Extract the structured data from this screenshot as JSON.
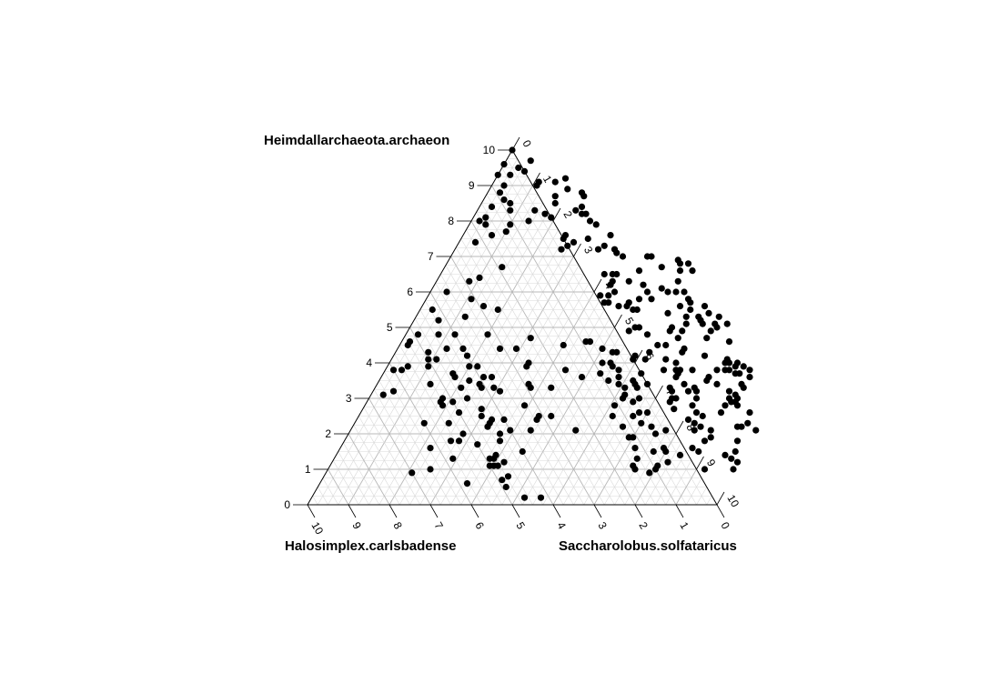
{
  "chart_data": {
    "type": "scatter",
    "subtype": "ternary",
    "corner_labels": {
      "top": "Heimdallarchaeota.archaeon",
      "left": "Halosimplex.carlsbadense",
      "right": "Saccharolobus.solfataricus"
    },
    "axis_range": [
      0,
      10
    ],
    "grid": true,
    "point_color": "#000000",
    "grid_color": "#d9d9d9",
    "axis_color": "#000000",
    "points": [
      [
        0.4,
        9.5
      ],
      [
        0.3,
        8.4
      ],
      [
        0.3,
        8.1
      ],
      [
        0.7,
        7.6
      ],
      [
        0.4,
        7.4
      ],
      [
        1.4,
        6.7
      ],
      [
        1.0,
        6.4
      ],
      [
        0.8,
        6.3
      ],
      [
        0.4,
        6.0
      ],
      [
        1.1,
        5.8
      ],
      [
        1.5,
        5.6
      ],
      [
        0.3,
        5.5
      ],
      [
        1.9,
        5.5
      ],
      [
        1.2,
        5.3
      ],
      [
        0.6,
        5.2
      ],
      [
        1.2,
        4.8
      ],
      [
        2.0,
        4.8
      ],
      [
        0.3,
        4.8
      ],
      [
        0.8,
        4.8
      ],
      [
        0.2,
        4.6
      ],
      [
        0.2,
        4.5
      ],
      [
        1.2,
        4.4
      ],
      [
        0.8,
        4.3
      ],
      [
        1.8,
        4.2
      ],
      [
        1.1,
        4.1
      ],
      [
        0.9,
        4.1
      ],
      [
        2.0,
        3.9
      ],
      [
        1.0,
        3.9
      ],
      [
        0.5,
        3.9
      ],
      [
        0.4,
        3.8
      ],
      [
        0.2,
        3.8
      ],
      [
        1.7,
        3.7
      ],
      [
        2.5,
        3.6
      ],
      [
        2.7,
        3.6
      ],
      [
        2.5,
        3.4
      ],
      [
        2.2,
        3.5
      ],
      [
        1.3,
        3.4
      ],
      [
        2.1,
        3.3
      ],
      [
        3.1,
        3.2
      ],
      [
        0.3,
        3.1
      ],
      [
        0.5,
        3.2
      ],
      [
        1.8,
        3.0
      ],
      [
        2.1,
        2.9
      ],
      [
        1.8,
        2.9
      ],
      [
        3.9,
        2.8
      ],
      [
        1.9,
        2.8
      ],
      [
        2.9,
        2.7
      ],
      [
        2.4,
        2.6
      ],
      [
        3.3,
        2.4
      ],
      [
        3.0,
        2.5
      ],
      [
        3.3,
        2.2
      ],
      [
        2.3,
        2.3
      ],
      [
        3.3,
        2.3
      ],
      [
        1.7,
        2.3
      ],
      [
        3.9,
        2.1
      ],
      [
        3.7,
        2.0
      ],
      [
        3.3,
        1.7
      ],
      [
        2.6,
        1.8
      ],
      [
        2.8,
        1.8
      ],
      [
        2.2,
        1.6
      ],
      [
        2.9,
        1.3
      ],
      [
        3.8,
        1.3
      ],
      [
        3.9,
        1.4
      ],
      [
        3.9,
        1.3
      ],
      [
        4.2,
        1.2
      ],
      [
        4.1,
        1.1
      ],
      [
        3.9,
        1.1
      ],
      [
        4.0,
        1.1
      ],
      [
        2.5,
        1.0
      ],
      [
        4.4,
        0.7
      ],
      [
        4.6,
        0.5
      ],
      [
        5.6,
        0.2
      ],
      [
        5.2,
        0.2
      ],
      [
        3.6,
        0.6
      ],
      [
        4.5,
        0.8
      ],
      [
        2.1,
        0.9
      ],
      [
        4.5,
        1.5
      ],
      [
        3.8,
        1.8
      ],
      [
        2.8,
        2.0
      ],
      [
        3.6,
        2.4
      ],
      [
        4.4,
        2.5
      ],
      [
        4.7,
        2.5
      ],
      [
        5.5,
        2.1
      ],
      [
        4.4,
        2.1
      ],
      [
        4.4,
        2.4
      ],
      [
        4.3,
        3.3
      ],
      [
        3.8,
        3.3
      ],
      [
        2.4,
        3.0
      ],
      [
        2.6,
        3.3
      ],
      [
        3.7,
        3.4
      ],
      [
        2.9,
        3.3
      ],
      [
        1.8,
        3.6
      ],
      [
        2.2,
        3.9
      ],
      [
        3.4,
        3.9
      ],
      [
        2.5,
        4.4
      ],
      [
        1.6,
        4.4
      ],
      [
        2.9,
        4.4
      ],
      [
        3.4,
        4.0
      ],
      [
        4.9,
        3.6
      ],
      [
        5.3,
        3.7
      ],
      [
        4.4,
        3.8
      ],
      [
        3.1,
        4.7
      ],
      [
        4.0,
        4.5
      ],
      [
        5.0,
        4.4
      ],
      [
        5.4,
        4.3
      ],
      [
        4.5,
        4.6
      ],
      [
        4.6,
        4.6
      ],
      [
        5.3,
        4.3
      ],
      [
        5.9,
        4.1
      ],
      [
        5.2,
        4.0
      ],
      [
        6.3,
        3.7
      ],
      [
        6.2,
        3.5
      ],
      [
        6.3,
        3.4
      ],
      [
        6.6,
        3.4
      ],
      [
        6.2,
        4.1
      ],
      [
        6.2,
        4.3
      ],
      [
        6.3,
        4.5
      ],
      [
        5.9,
        4.8
      ],
      [
        5.4,
        4.9
      ],
      [
        5.6,
        5.0
      ],
      [
        5.5,
        5.0
      ],
      [
        6.4,
        5.0
      ],
      [
        6.7,
        5.1
      ],
      [
        6.6,
        5.3
      ],
      [
        7.1,
        5.1
      ],
      [
        6.1,
        5.4
      ],
      [
        5.3,
        5.5
      ],
      [
        5.0,
        5.6
      ],
      [
        4.8,
        5.6
      ],
      [
        5.0,
        5.7
      ],
      [
        5.2,
        5.8
      ],
      [
        4.4,
        5.7
      ],
      [
        4.5,
        5.7
      ],
      [
        5.2,
        5.5
      ],
      [
        5.8,
        6.0
      ],
      [
        6.3,
        5.6
      ],
      [
        7.4,
        5.3
      ],
      [
        7.7,
        5.1
      ],
      [
        7.4,
        5.1
      ],
      [
        7.5,
        5.0
      ],
      [
        7.4,
        4.9
      ],
      [
        7.4,
        4.7
      ],
      [
        8.0,
        4.6
      ],
      [
        8.2,
        4.0
      ],
      [
        7.0,
        4.3
      ],
      [
        7.6,
        4.2
      ],
      [
        7.5,
        3.8
      ],
      [
        7.2,
        3.8
      ],
      [
        7.1,
        3.8
      ],
      [
        7.2,
        3.7
      ],
      [
        7.2,
        3.6
      ],
      [
        7.5,
        3.4
      ],
      [
        7.7,
        3.2
      ],
      [
        8.3,
        3.4
      ],
      [
        8.0,
        3.5
      ],
      [
        8.0,
        3.6
      ],
      [
        8.1,
        3.8
      ],
      [
        8.3,
        4.0
      ],
      [
        8.2,
        4.1
      ],
      [
        8.4,
        3.8
      ],
      [
        8.3,
        3.8
      ],
      [
        8.5,
        3.9
      ],
      [
        8.5,
        4.0
      ],
      [
        8.7,
        3.9
      ],
      [
        8.6,
        3.7
      ],
      [
        8.7,
        3.7
      ],
      [
        8.9,
        3.8
      ],
      [
        9.0,
        3.6
      ],
      [
        8.9,
        3.4
      ],
      [
        9.0,
        3.3
      ],
      [
        8.7,
        3.2
      ],
      [
        8.9,
        3.1
      ],
      [
        8.8,
        3.0
      ],
      [
        9.0,
        3.0
      ],
      [
        8.9,
        2.9
      ],
      [
        9.0,
        2.9
      ],
      [
        8.8,
        2.6
      ],
      [
        8.8,
        2.8
      ],
      [
        9.1,
        2.8
      ],
      [
        9.5,
        2.6
      ],
      [
        9.6,
        2.3
      ],
      [
        9.4,
        2.2
      ],
      [
        9.5,
        2.2
      ],
      [
        9.9,
        2.1
      ],
      [
        9.6,
        1.8
      ],
      [
        9.7,
        1.5
      ],
      [
        9.5,
        1.4
      ],
      [
        9.7,
        1.3
      ],
      [
        9.9,
        1.2
      ],
      [
        9.9,
        1.0
      ],
      [
        9.2,
        1.0
      ],
      [
        8.8,
        1.5
      ],
      [
        8.6,
        1.6
      ],
      [
        8.8,
        1.8
      ],
      [
        8.9,
        1.9
      ],
      [
        8.4,
        2.1
      ],
      [
        8.8,
        2.1
      ],
      [
        8.5,
        2.2
      ],
      [
        8.3,
        2.3
      ],
      [
        8.1,
        2.4
      ],
      [
        8.4,
        2.5
      ],
      [
        8.2,
        2.6
      ],
      [
        8.0,
        2.8
      ],
      [
        8.0,
        3.0
      ],
      [
        7.9,
        3.2
      ],
      [
        7.8,
        3.3
      ],
      [
        7.5,
        3.0
      ],
      [
        7.4,
        3.0
      ],
      [
        7.3,
        3.2
      ],
      [
        7.2,
        3.3
      ],
      [
        7.4,
        2.9
      ],
      [
        7.6,
        2.7
      ],
      [
        7.3,
        2.2
      ],
      [
        7.5,
        2.0
      ],
      [
        7.7,
        2.1
      ],
      [
        7.0,
        1.9
      ],
      [
        7.9,
        1.6
      ],
      [
        8.0,
        1.5
      ],
      [
        8.2,
        1.2
      ],
      [
        8.4,
        1.4
      ],
      [
        8.0,
        1.1
      ],
      [
        8.0,
        1.0
      ],
      [
        7.4,
        1.1
      ],
      [
        7.5,
        1.0
      ],
      [
        7.9,
        0.9
      ],
      [
        7.7,
        1.5
      ],
      [
        7.4,
        1.3
      ],
      [
        7.2,
        1.6
      ],
      [
        6.9,
        1.9
      ],
      [
        6.7,
        2.5
      ],
      [
        6.8,
        2.6
      ],
      [
        6.2,
        2.5
      ],
      [
        6.1,
        2.8
      ],
      [
        6.5,
        2.9
      ],
      [
        6.6,
        2.2
      ],
      [
        7.0,
        2.3
      ],
      [
        7.0,
        2.6
      ],
      [
        6.4,
        3.3
      ],
      [
        6.6,
        3.0
      ],
      [
        6.2,
        3.0
      ],
      [
        6.1,
        3.3
      ],
      [
        6.2,
        3.1
      ],
      [
        5.9,
        3.4
      ],
      [
        5.6,
        3.5
      ],
      [
        5.8,
        3.6
      ],
      [
        5.7,
        3.8
      ],
      [
        5.5,
        3.9
      ],
      [
        5.4,
        4.0
      ],
      [
        5.9,
        4.2
      ],
      [
        6.5,
        4.5
      ],
      [
        6.7,
        4.1
      ],
      [
        6.8,
        3.8
      ],
      [
        7.0,
        4.0
      ],
      [
        6.4,
        4.9
      ],
      [
        6.7,
        4.9
      ],
      [
        6.7,
        4.7
      ],
      [
        7.0,
        4.4
      ],
      [
        6.9,
        5.3
      ],
      [
        6.6,
        5.5
      ],
      [
        7.1,
        5.4
      ],
      [
        7.0,
        5.2
      ],
      [
        6.9,
        5.6
      ],
      [
        6.4,
        5.8
      ],
      [
        6.5,
        5.7
      ],
      [
        6.2,
        6.0
      ],
      [
        5.9,
        6.3
      ],
      [
        6.0,
        6.0
      ],
      [
        5.8,
        6.6
      ],
      [
        6.1,
        6.6
      ],
      [
        5.6,
        6.9
      ],
      [
        5.7,
        6.8
      ],
      [
        5.3,
        6.7
      ],
      [
        5.9,
        6.8
      ],
      [
        4.8,
        6.6
      ],
      [
        4.2,
        6.5
      ],
      [
        4.3,
        6.5
      ],
      [
        4.8,
        7.0
      ],
      [
        4.9,
        7.0
      ],
      [
        5.6,
        6.1
      ],
      [
        5.1,
        6.2
      ],
      [
        5.3,
        6.0
      ],
      [
        5.5,
        5.8
      ],
      [
        4.5,
        6.0
      ],
      [
        4.4,
        5.9
      ],
      [
        4.2,
        5.9
      ],
      [
        4.3,
        6.2
      ],
      [
        4.3,
        6.3
      ],
      [
        4.7,
        6.3
      ],
      [
        4.0,
        6.5
      ],
      [
        4.2,
        7.0
      ],
      [
        4.0,
        7.1
      ],
      [
        3.9,
        7.2
      ],
      [
        3.5,
        7.2
      ],
      [
        3.6,
        7.3
      ],
      [
        3.6,
        7.6
      ],
      [
        3.1,
        7.5
      ],
      [
        2.8,
        7.4
      ],
      [
        2.7,
        7.3
      ],
      [
        2.6,
        7.2
      ],
      [
        2.5,
        7.5
      ],
      [
        2.5,
        7.6
      ],
      [
        3.1,
        7.9
      ],
      [
        2.9,
        8.0
      ],
      [
        2.7,
        8.2
      ],
      [
        2.6,
        8.2
      ],
      [
        2.4,
        8.3
      ],
      [
        2.5,
        8.4
      ],
      [
        2.4,
        8.7
      ],
      [
        1.7,
        8.7
      ],
      [
        1.9,
        8.9
      ],
      [
        2.3,
        8.8
      ],
      [
        1.1,
        9.0
      ],
      [
        1.1,
        9.1
      ],
      [
        1.5,
        9.1
      ],
      [
        1.7,
        9.2
      ],
      [
        1.8,
        8.5
      ],
      [
        1.9,
        8.1
      ],
      [
        1.7,
        8.2
      ],
      [
        1.4,
        8.3
      ],
      [
        1.4,
        8.0
      ],
      [
        1.0,
        7.9
      ],
      [
        1.0,
        7.7
      ],
      [
        0.4,
        7.9
      ],
      [
        0.2,
        8.0
      ],
      [
        0.8,
        8.3
      ],
      [
        0.7,
        8.5
      ],
      [
        0.5,
        8.6
      ],
      [
        0.3,
        8.8
      ],
      [
        0.3,
        9.0
      ],
      [
        0.3,
        9.3
      ],
      [
        0.6,
        9.4
      ],
      [
        0.6,
        9.7
      ],
      [
        0.0,
        10.0
      ],
      [
        0.0,
        9.6
      ],
      [
        0.0,
        9.3
      ]
    ]
  }
}
